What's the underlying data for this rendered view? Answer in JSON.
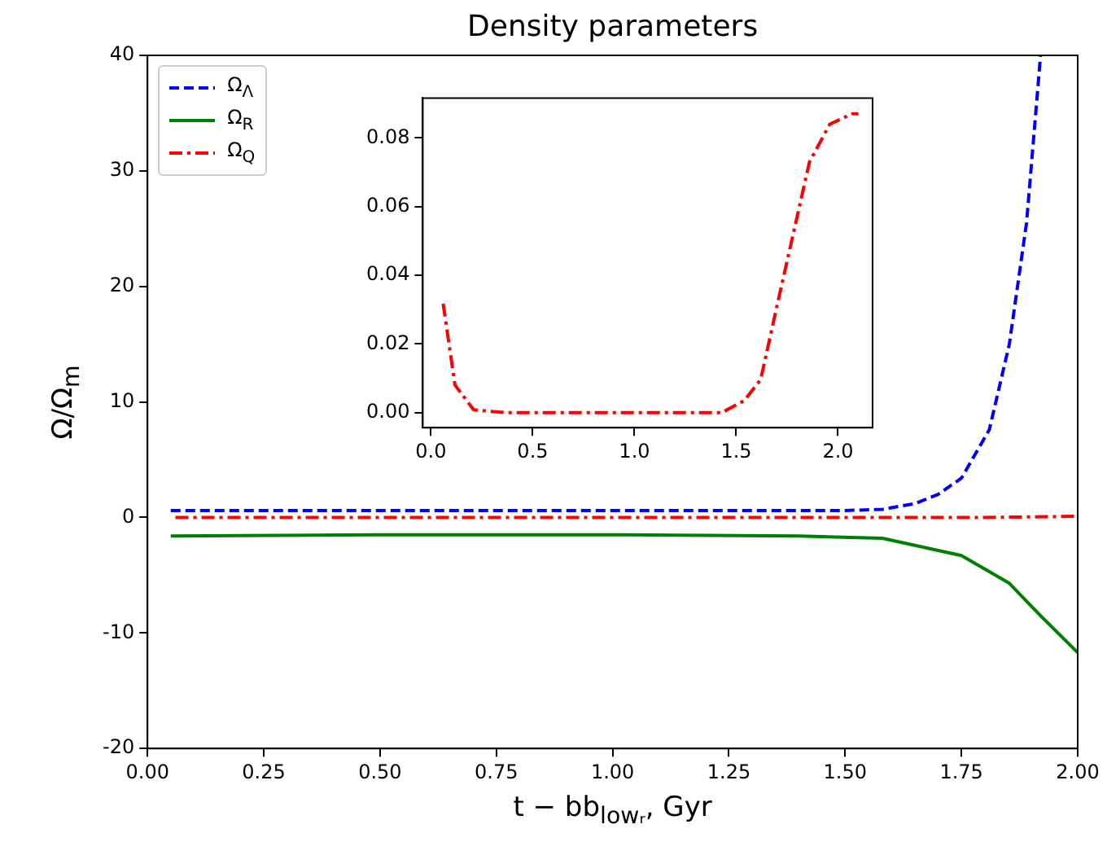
{
  "chart_data": [
    {
      "type": "line",
      "title": "Density parameters",
      "xlabel": "t − bb$_{lowᵣ}$, Gyr",
      "ylabel": "Ω/Ω$_{m}$",
      "legend": "top left",
      "xlim": [
        0,
        2
      ],
      "xticks": [
        {
          "value": 0,
          "label": "0.00"
        },
        0.25,
        {
          "value": 0.5,
          "label": "0.50"
        },
        0.75,
        {
          "value": 1,
          "label": "1.00"
        },
        1.25,
        {
          "value": 1.5,
          "label": "1.50"
        },
        1.75,
        {
          "value": 2,
          "label": "2.00"
        }
      ],
      "ylim": [
        -20,
        40
      ],
      "yticks": [
        -20,
        -10,
        0,
        10,
        20,
        30,
        40
      ],
      "series": [
        {
          "name": "Ω$_{Λ}$",
          "color": "#0000ff",
          "line_style": "dashed",
          "x": [
            0.05,
            0.5,
            1.0,
            1.4,
            1.5,
            1.58,
            1.65,
            1.7,
            1.75,
            1.81,
            1.853,
            1.89,
            1.916,
            1.92
          ],
          "values": [
            0.6,
            0.6,
            0.6,
            0.6,
            0.6,
            0.7,
            1.2,
            2.0,
            3.4,
            7.6,
            15,
            25.5,
            38,
            40
          ]
        },
        {
          "name": "Ω$_{R}$",
          "color": "#008000",
          "line_style": "solid",
          "x": [
            0.05,
            0.5,
            1.0,
            1.4,
            1.58,
            1.75,
            1.853,
            1.92,
            2.0
          ],
          "values": [
            -1.6,
            -1.5,
            -1.5,
            -1.6,
            -1.8,
            -3.3,
            -5.7,
            -8.5,
            -11.7
          ]
        },
        {
          "name": "Ω$_{Q}$",
          "color": "#ff0000",
          "line_style": "dashdot",
          "x": [
            0.06,
            1.5,
            1.8,
            2.0
          ],
          "values": [
            0,
            0,
            0,
            0.1
          ]
        }
      ]
    },
    {
      "type": "line",
      "xlim": [
        -0.04,
        2.17
      ],
      "xticks": [
        {
          "value": 0,
          "label": "0.0"
        },
        0.5,
        {
          "value": 1,
          "label": "1.0"
        },
        1.5,
        {
          "value": 2,
          "label": "2.0"
        }
      ],
      "ylim": [
        -0.0044,
        0.0916
      ],
      "yticks": [
        {
          "value": 0,
          "label": "0.00"
        },
        0.02,
        0.04,
        0.06,
        0.08
      ],
      "series": [
        {
          "color": "#ff0000",
          "line_style": "dashdot",
          "x": [
            0.06,
            0.118,
            0.21,
            0.36,
            1.43,
            1.54,
            1.62,
            1.7,
            1.78,
            1.86,
            1.96,
            2.07,
            2.1
          ],
          "values": [
            0.0317,
            0.008,
            0.0008,
            0,
            0,
            0.0035,
            0.0096,
            0.031,
            0.052,
            0.073,
            0.084,
            0.087,
            0.087
          ]
        }
      ]
    }
  ]
}
